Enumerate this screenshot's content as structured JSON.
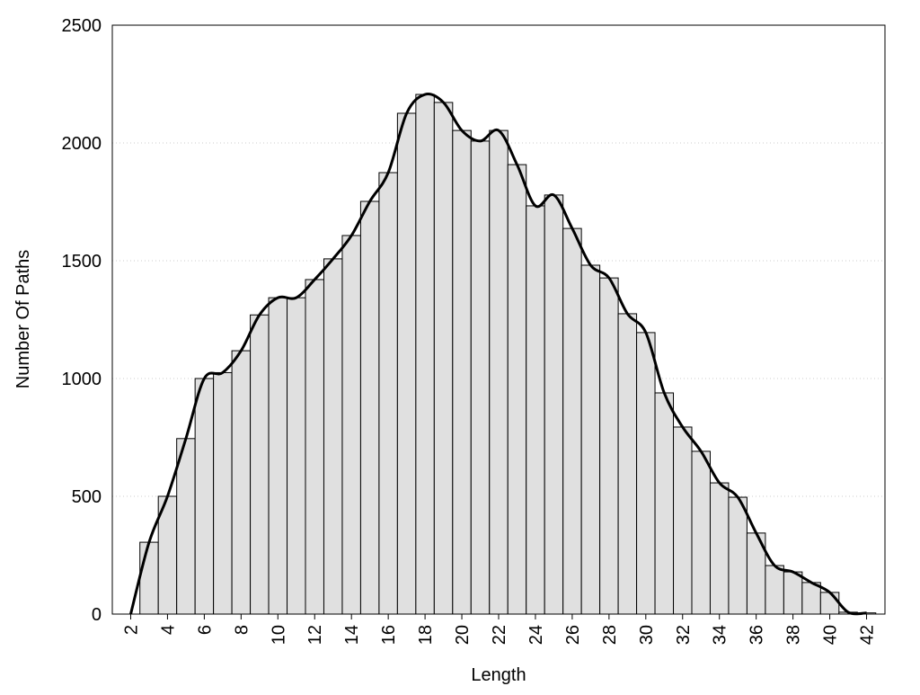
{
  "chart_data": {
    "type": "histogram",
    "x_label": "Length",
    "y_label": "Number Of Paths",
    "bins": [
      2.5,
      3.5,
      4.5,
      5.5,
      6.5,
      7.5,
      8.5,
      9.5,
      10.5,
      11.5,
      12.5,
      13.5,
      14.5,
      15.5,
      16.5,
      17.5,
      18.5,
      19.5,
      20.5,
      21.5,
      22.5,
      23.5,
      24.5,
      25.5,
      26.5,
      27.5,
      28.5,
      29.5,
      30.5,
      31.5,
      32.5,
      33.5,
      34.5,
      35.5,
      36.5,
      37.5,
      38.5,
      39.5,
      40.5,
      41.5,
      42.5
    ],
    "counts": [
      305,
      500,
      745,
      1000,
      1025,
      1118,
      1270,
      1343,
      1343,
      1420,
      1508,
      1607,
      1752,
      1874,
      2126,
      2206,
      2172,
      2053,
      2008,
      2053,
      1908,
      1733,
      1779,
      1637,
      1481,
      1427,
      1275,
      1195,
      939,
      794,
      691,
      557,
      496,
      344,
      206,
      179,
      134,
      92,
      8,
      5
    ],
    "color": "#e0e0e0",
    "line": {
      "color": "#000000",
      "x": [
        2,
        3,
        4,
        5,
        6,
        7,
        8,
        9,
        10,
        11,
        12,
        13,
        14,
        15,
        16,
        17,
        18,
        19,
        20,
        21,
        22,
        23,
        24,
        25,
        26,
        27,
        28,
        29,
        30,
        31,
        32,
        33,
        34,
        35,
        36,
        37,
        38,
        39,
        40,
        41,
        42
      ],
      "values": [
        0,
        305,
        500,
        745,
        1000,
        1025,
        1118,
        1270,
        1343,
        1343,
        1420,
        1508,
        1607,
        1752,
        1874,
        2126,
        2206,
        2172,
        2053,
        2008,
        2053,
        1908,
        1733,
        1779,
        1637,
        1481,
        1427,
        1275,
        1195,
        939,
        794,
        691,
        557,
        496,
        344,
        206,
        179,
        134,
        92,
        8,
        5
      ]
    },
    "xlim": [
      1,
      43
    ],
    "xticks": [
      2,
      4,
      6,
      8,
      10,
      12,
      14,
      16,
      18,
      20,
      22,
      24,
      26,
      28,
      30,
      32,
      34,
      36,
      38,
      40,
      42
    ],
    "ylim": [
      0,
      2500
    ],
    "yticks": [
      0,
      500,
      1000,
      1500,
      2000,
      2500
    ],
    "grid": true
  }
}
